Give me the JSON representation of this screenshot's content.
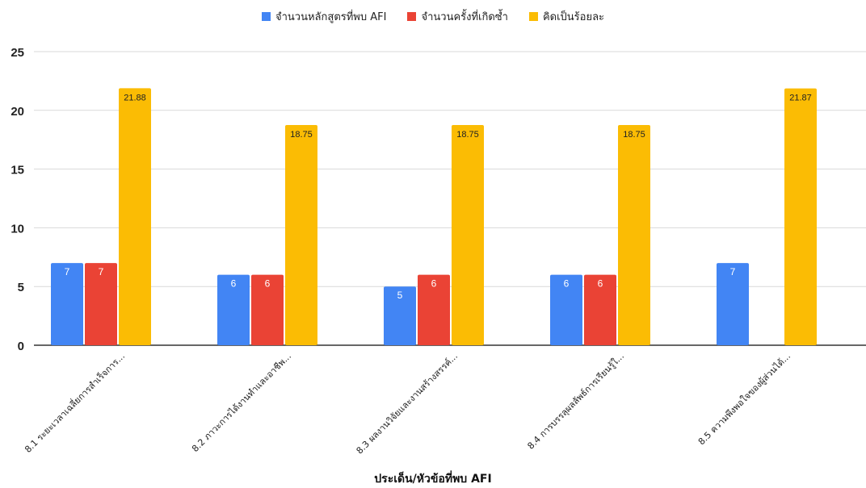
{
  "chart_data": {
    "type": "bar",
    "title": "",
    "xlabel": "ประเด็น/หัวข้อที่พบ AFI",
    "ylabel": "",
    "ylim": [
      0,
      25
    ],
    "yticks": [
      0,
      5,
      10,
      15,
      20,
      25
    ],
    "grid": true,
    "legend_position": "top",
    "categories": [
      "8.1 ระยะเวลาเฉลี่ยการสำเร็จการ...",
      "8.2 ภาวะการได้งานทำและอาชีพ...",
      "8.3 ผลงานวิจัยและงานสร้างสรรค์...",
      "8.4 การบรรลุผลลัพธ์การเรียนรู้ใ...",
      "8.5 ความพึงพอใจของผู้ส่วนได้..."
    ],
    "series": [
      {
        "name": "จำนวนหลักสูตรที่พบ AFI",
        "color": "#4285F4",
        "values": [
          7,
          6,
          5,
          6,
          7
        ],
        "labels": [
          "7",
          "6",
          "5",
          "6",
          "7"
        ]
      },
      {
        "name": "จำนวนครั้งที่เกิดซ้ำ",
        "color": "#EA4335",
        "values": [
          7,
          6,
          6,
          6,
          null
        ],
        "labels": [
          "7",
          "6",
          "6",
          "6",
          ""
        ]
      },
      {
        "name": "คิดเป็นร้อยละ",
        "color": "#FBBC04",
        "values": [
          21.88,
          18.75,
          18.75,
          18.75,
          21.87
        ],
        "labels": [
          "21.88",
          "18.75",
          "18.75",
          "18.75",
          "21.87"
        ]
      }
    ]
  }
}
